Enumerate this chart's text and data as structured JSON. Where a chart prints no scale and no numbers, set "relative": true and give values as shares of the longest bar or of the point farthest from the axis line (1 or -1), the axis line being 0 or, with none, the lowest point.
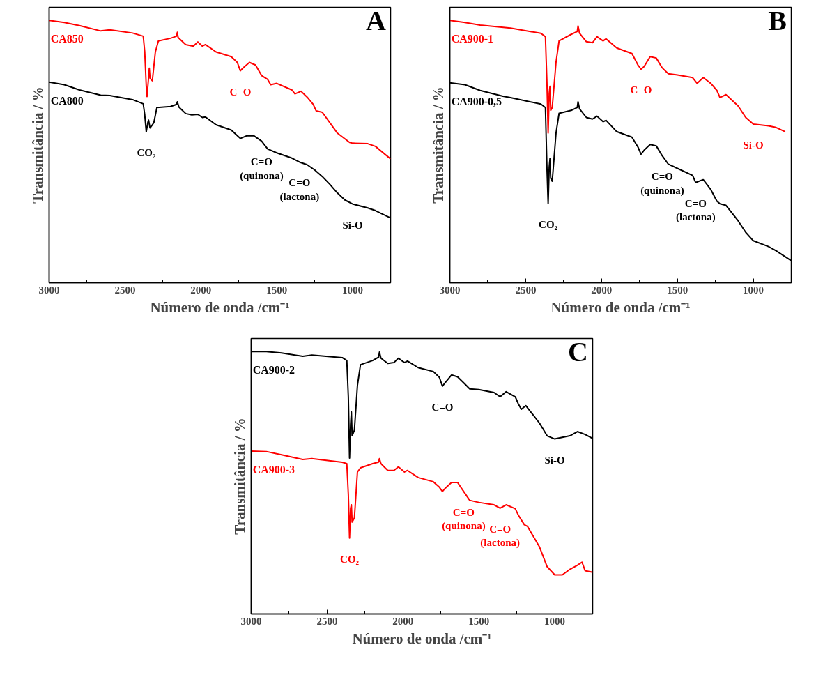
{
  "chart_data": [
    {
      "type": "line",
      "relative": true,
      "ylabel": "Transmitância / %",
      "xlabel": "Número de onda /cm⁻¹",
      "xlim": [
        3000,
        750
      ],
      "xticks": [
        3000,
        {
          "value": 2750,
          "label": null
        },
        2500,
        {
          "value": 2250,
          "label": null
        },
        2000,
        {
          "value": 1750,
          "label": null
        },
        1500,
        {
          "value": 1250,
          "label": null
        },
        1000,
        {
          "value": 750,
          "label": null
        }
      ],
      "series": [
        {
          "name": "CA850",
          "color": "#ff0000",
          "x": [
            3000,
            2900,
            2800,
            2660,
            2600,
            2450,
            2380,
            2370,
            2360,
            2355,
            2345,
            2340,
            2335,
            2320,
            2300,
            2280,
            2200,
            2160,
            2155,
            2150,
            2100,
            2050,
            2020,
            1990,
            1970,
            1900,
            1800,
            1760,
            1740,
            1720,
            1680,
            1640,
            1600,
            1560,
            1540,
            1500,
            1400,
            1380,
            1340,
            1300,
            1260,
            1240,
            1200,
            1100,
            1020,
            1000,
            900,
            850,
            750
          ],
          "values": [
            1.0,
            0.992,
            0.98,
            0.96,
            0.964,
            0.952,
            0.94,
            0.88,
            0.75,
            0.71,
            0.78,
            0.818,
            0.78,
            0.77,
            0.88,
            0.922,
            0.932,
            0.94,
            0.955,
            0.935,
            0.908,
            0.902,
            0.918,
            0.902,
            0.908,
            0.88,
            0.862,
            0.84,
            0.808,
            0.82,
            0.84,
            0.83,
            0.79,
            0.775,
            0.755,
            0.76,
            0.735,
            0.72,
            0.73,
            0.708,
            0.68,
            0.655,
            0.65,
            0.57,
            0.535,
            0.532,
            0.53,
            0.52,
            0.472
          ]
        },
        {
          "name": "CA800",
          "color": "#000000",
          "x": [
            3000,
            2900,
            2800,
            2660,
            2600,
            2450,
            2380,
            2370,
            2360,
            2350,
            2345,
            2335,
            2310,
            2290,
            2200,
            2160,
            2155,
            2145,
            2100,
            2060,
            2020,
            1990,
            1970,
            1900,
            1800,
            1740,
            1700,
            1650,
            1600,
            1560,
            1500,
            1400,
            1350,
            1300,
            1250,
            1200,
            1150,
            1100,
            1050,
            1000,
            900,
            850,
            750
          ],
          "values": [
            0.765,
            0.755,
            0.735,
            0.715,
            0.714,
            0.698,
            0.682,
            0.64,
            0.575,
            0.61,
            0.62,
            0.59,
            0.61,
            0.668,
            0.672,
            0.68,
            0.69,
            0.67,
            0.645,
            0.64,
            0.642,
            0.63,
            0.632,
            0.602,
            0.582,
            0.55,
            0.56,
            0.56,
            0.54,
            0.51,
            0.495,
            0.475,
            0.46,
            0.45,
            0.43,
            0.405,
            0.375,
            0.342,
            0.315,
            0.3,
            0.285,
            0.275,
            0.247
          ]
        }
      ],
      "annotations": [
        "A",
        {
          "text": "C=O",
          "x": 1740,
          "y": 0.808
        },
        {
          "text": "CO₂",
          "x": 2360,
          "y": 0.575
        },
        {
          "text": "C=O\n(quinona)",
          "x": 1600,
          "y": 0.54
        },
        {
          "text": "C=O\n(lactona)",
          "x": 1350,
          "y": 0.46
        },
        {
          "text": "Si-O",
          "x": 1000,
          "y": 0.3
        }
      ]
    },
    {
      "type": "line",
      "relative": true,
      "ylabel": "Transmitância / %",
      "xlabel": "Número de onda /cm⁻¹",
      "xlim": [
        3000,
        750
      ],
      "xticks": [
        3000,
        {
          "value": 2750,
          "label": null
        },
        2500,
        {
          "value": 2250,
          "label": null
        },
        2000,
        {
          "value": 1750,
          "label": null
        },
        1500,
        {
          "value": 1250,
          "label": null
        },
        1000,
        {
          "value": 750,
          "label": null
        }
      ],
      "series": [
        {
          "name": "CA900-1",
          "color": "#ff0000",
          "x": [
            3000,
            2900,
            2800,
            2600,
            2400,
            2370,
            2360,
            2352,
            2345,
            2340,
            2335,
            2325,
            2300,
            2280,
            2200,
            2160,
            2155,
            2145,
            2100,
            2060,
            2030,
            1990,
            1970,
            1900,
            1800,
            1760,
            1740,
            1720,
            1680,
            1640,
            1600,
            1560,
            1500,
            1400,
            1370,
            1330,
            1280,
            1240,
            1220,
            1180,
            1100,
            1050,
            1000,
            900,
            850,
            790
          ],
          "values": [
            1.0,
            0.992,
            0.982,
            0.971,
            0.951,
            0.938,
            0.765,
            0.571,
            0.722,
            0.749,
            0.657,
            0.668,
            0.841,
            0.922,
            0.947,
            0.958,
            0.979,
            0.951,
            0.919,
            0.915,
            0.938,
            0.922,
            0.93,
            0.895,
            0.874,
            0.83,
            0.814,
            0.824,
            0.862,
            0.857,
            0.819,
            0.797,
            0.792,
            0.782,
            0.76,
            0.782,
            0.76,
            0.733,
            0.706,
            0.717,
            0.674,
            0.63,
            0.605,
            0.598,
            0.592,
            0.576
          ]
        },
        {
          "name": "CA900-0,5",
          "color": "#000000",
          "x": [
            3000,
            2900,
            2800,
            2650,
            2600,
            2400,
            2370,
            2360,
            2352,
            2345,
            2340,
            2335,
            2325,
            2300,
            2280,
            2200,
            2160,
            2155,
            2145,
            2100,
            2060,
            2030,
            1990,
            1970,
            1900,
            1800,
            1760,
            1740,
            1720,
            1680,
            1640,
            1600,
            1560,
            1500,
            1400,
            1380,
            1330,
            1280,
            1240,
            1220,
            1180,
            1100,
            1050,
            1000,
            900,
            850,
            750
          ],
          "values": [
            0.762,
            0.755,
            0.733,
            0.711,
            0.706,
            0.681,
            0.668,
            0.441,
            0.301,
            0.441,
            0.473,
            0.398,
            0.387,
            0.571,
            0.646,
            0.657,
            0.668,
            0.69,
            0.663,
            0.63,
            0.624,
            0.635,
            0.614,
            0.619,
            0.576,
            0.555,
            0.517,
            0.49,
            0.505,
            0.527,
            0.522,
            0.484,
            0.452,
            0.436,
            0.409,
            0.382,
            0.393,
            0.355,
            0.311,
            0.301,
            0.295,
            0.236,
            0.192,
            0.16,
            0.138,
            0.122,
            0.084
          ]
        }
      ],
      "annotations": [
        "B",
        {
          "text": "C=O",
          "x": 1740,
          "y": 0.814
        },
        {
          "text": "CO₂",
          "x": 2352,
          "y": 0.301
        },
        {
          "text": "C=O\n(quinona)",
          "x": 1600,
          "y": 0.484
        },
        {
          "text": "C=O\n(lactona)",
          "x": 1380,
          "y": 0.382
        },
        {
          "text": "Si-O",
          "x": 1000,
          "y": 0.605
        }
      ]
    },
    {
      "type": "line",
      "relative": true,
      "ylabel": "Transmitância / %",
      "xlabel": "Número de onda /cm⁻¹",
      "xlim": [
        3000,
        750
      ],
      "xticks": [
        3000,
        {
          "value": 2750,
          "label": null
        },
        2500,
        {
          "value": 2250,
          "label": null
        },
        2000,
        {
          "value": 1750,
          "label": null
        },
        1500,
        {
          "value": 1250,
          "label": null
        },
        1000,
        {
          "value": 750,
          "label": null
        }
      ],
      "series": [
        {
          "name": "CA900-2",
          "color": "#000000",
          "x": [
            3000,
            2900,
            2800,
            2660,
            2600,
            2400,
            2370,
            2360,
            2352,
            2345,
            2340,
            2335,
            2320,
            2300,
            2280,
            2200,
            2160,
            2155,
            2145,
            2100,
            2060,
            2030,
            1990,
            1970,
            1900,
            1800,
            1760,
            1740,
            1720,
            1680,
            1640,
            1600,
            1560,
            1500,
            1400,
            1360,
            1320,
            1260,
            1240,
            1220,
            1190,
            1100,
            1050,
            1000,
            900,
            850,
            800,
            750
          ],
          "values": [
            1.0,
            1.0,
            0.995,
            0.982,
            0.987,
            0.977,
            0.966,
            0.828,
            0.594,
            0.722,
            0.77,
            0.679,
            0.701,
            0.871,
            0.95,
            0.966,
            0.979,
            0.998,
            0.975,
            0.955,
            0.958,
            0.975,
            0.958,
            0.964,
            0.939,
            0.924,
            0.902,
            0.868,
            0.883,
            0.911,
            0.904,
            0.881,
            0.858,
            0.855,
            0.844,
            0.828,
            0.847,
            0.828,
            0.801,
            0.78,
            0.794,
            0.727,
            0.679,
            0.667,
            0.679,
            0.695,
            0.684,
            0.669
          ]
        },
        {
          "name": "CA900-3",
          "color": "#ff0000",
          "x": [
            3000,
            2900,
            2800,
            2660,
            2600,
            2400,
            2370,
            2360,
            2352,
            2345,
            2340,
            2335,
            2320,
            2300,
            2280,
            2200,
            2160,
            2155,
            2145,
            2100,
            2060,
            2030,
            1990,
            1970,
            1900,
            1800,
            1760,
            1740,
            1720,
            1680,
            1640,
            1600,
            1560,
            1500,
            1400,
            1360,
            1320,
            1260,
            1240,
            1200,
            1180,
            1100,
            1050,
            1000,
            950,
            900,
            850,
            820,
            800,
            750
          ],
          "values": [
            0.621,
            0.619,
            0.607,
            0.589,
            0.592,
            0.578,
            0.573,
            0.456,
            0.289,
            0.403,
            0.416,
            0.35,
            0.366,
            0.541,
            0.557,
            0.573,
            0.579,
            0.592,
            0.573,
            0.547,
            0.547,
            0.561,
            0.541,
            0.547,
            0.52,
            0.504,
            0.483,
            0.467,
            0.48,
            0.501,
            0.501,
            0.467,
            0.433,
            0.425,
            0.416,
            0.403,
            0.416,
            0.401,
            0.377,
            0.34,
            0.334,
            0.255,
            0.18,
            0.149,
            0.149,
            0.17,
            0.186,
            0.197,
            0.165,
            0.159
          ]
        }
      ],
      "annotations": [
        "C",
        {
          "text": "C=O",
          "x": 1740,
          "y": 0.868
        },
        {
          "text": "Si-O",
          "x": 1000,
          "y": 0.667
        },
        {
          "text": "CO₂",
          "x": 2352,
          "y": 0.289
        },
        {
          "text": "C=O\n(quinona)",
          "x": 1600,
          "y": 0.467
        },
        {
          "text": "C=O\n(lactona)",
          "x": 1360,
          "y": 0.403
        }
      ]
    }
  ]
}
